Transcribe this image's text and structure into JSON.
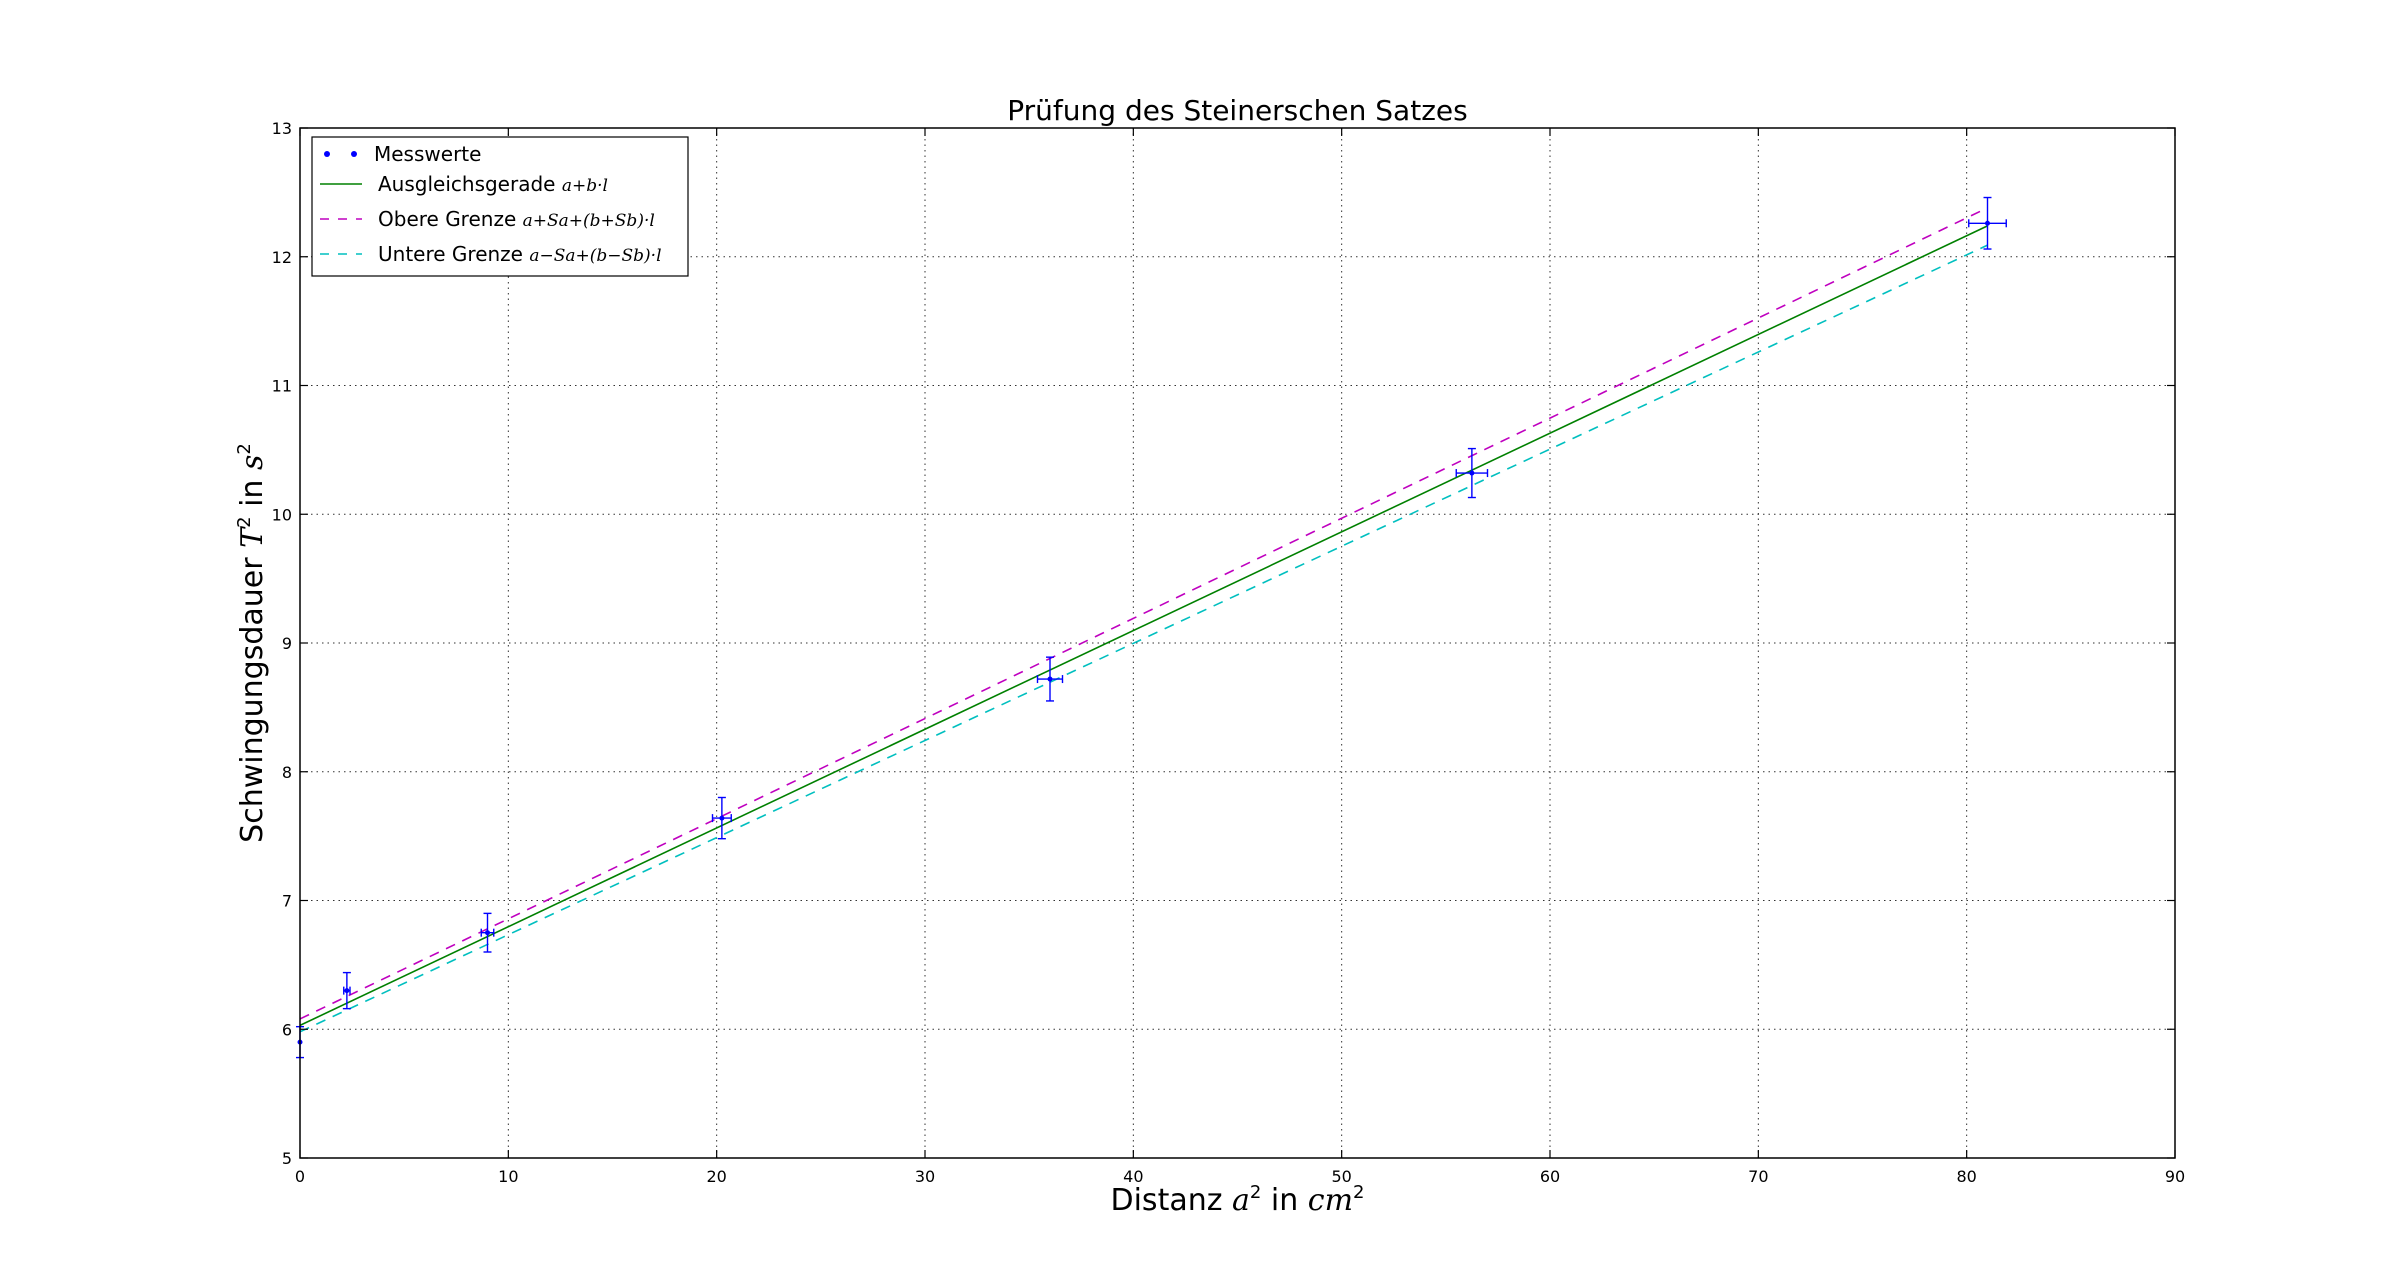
{
  "chart_data": {
    "type": "scatter",
    "title": "Prüfung des Steinerschen Satzes",
    "xlabel": {
      "text": "Distanz ",
      "math": "a",
      "sup": "2",
      "mid": "  in ",
      "unit": "cm",
      "unit_sup": "2"
    },
    "ylabel": {
      "text": "Schwingungsdauer ",
      "math": "T",
      "sup": "2",
      "mid": "  in ",
      "unit": "s",
      "unit_sup": "2"
    },
    "xlim": [
      0,
      90
    ],
    "ylim": [
      5,
      13
    ],
    "xticks": [
      0,
      10,
      20,
      30,
      40,
      50,
      60,
      70,
      80,
      90
    ],
    "yticks": [
      5,
      6,
      7,
      8,
      9,
      10,
      11,
      12,
      13
    ],
    "grid": true,
    "legend_position": "top-left",
    "colors": {
      "points": "#0000ff",
      "fit": "#008000",
      "upper": "#bf00bf",
      "lower": "#00bfbf"
    },
    "series": [
      {
        "name": "Messwerte",
        "kind": "errorbar",
        "x": [
          0,
          2.25,
          9,
          20.25,
          36,
          56.25,
          81
        ],
        "y": [
          5.9,
          6.3,
          6.75,
          7.64,
          8.72,
          10.32,
          12.26
        ],
        "xerr": [
          0.0,
          0.15,
          0.3,
          0.45,
          0.6,
          0.75,
          0.9
        ],
        "yerr": [
          0.12,
          0.14,
          0.15,
          0.16,
          0.17,
          0.19,
          0.2
        ]
      },
      {
        "name": "Ausgleichsgerade",
        "formula": "a+b·l",
        "kind": "line",
        "style": "solid",
        "x": [
          0,
          81
        ],
        "y": [
          6.03,
          12.24
        ]
      },
      {
        "name": "Obere Grenze",
        "formula": "a+Sa+(b+Sb)·l",
        "kind": "line",
        "style": "dashed",
        "x": [
          0,
          81
        ],
        "y": [
          6.08,
          12.38
        ]
      },
      {
        "name": "Untere Grenze",
        "formula": "a−Sa+(b−Sb)·l",
        "kind": "line",
        "style": "dashed",
        "x": [
          0,
          81
        ],
        "y": [
          5.98,
          12.09
        ]
      }
    ]
  }
}
